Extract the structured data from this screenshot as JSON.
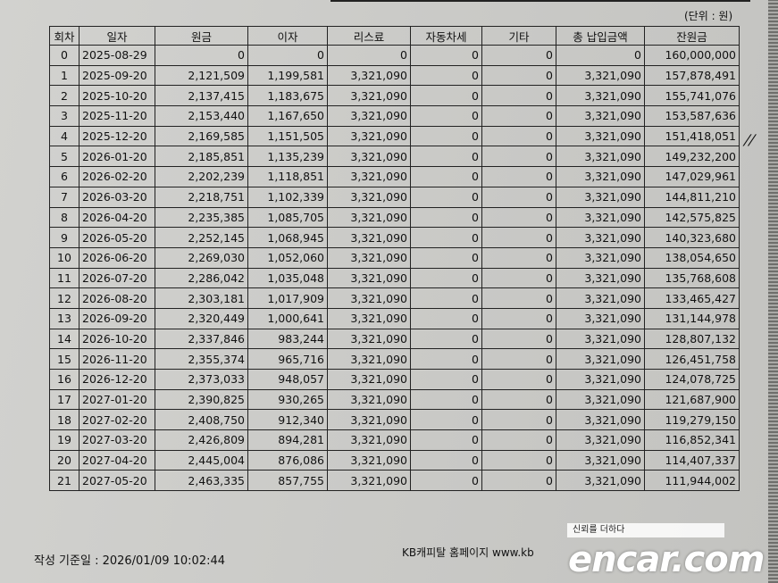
{
  "unit_label": "(단위 : 원)",
  "columns": [
    "회차",
    "일자",
    "원금",
    "이자",
    "리스료",
    "자동차세",
    "기타",
    "총 납입금액",
    "잔원금"
  ],
  "rows": [
    [
      "0",
      "2025-08-29",
      "0",
      "0",
      "0",
      "0",
      "0",
      "0",
      "160,000,000"
    ],
    [
      "1",
      "2025-09-20",
      "2,121,509",
      "1,199,581",
      "3,321,090",
      "0",
      "0",
      "3,321,090",
      "157,878,491"
    ],
    [
      "2",
      "2025-10-20",
      "2,137,415",
      "1,183,675",
      "3,321,090",
      "0",
      "0",
      "3,321,090",
      "155,741,076"
    ],
    [
      "3",
      "2025-11-20",
      "2,153,440",
      "1,167,650",
      "3,321,090",
      "0",
      "0",
      "3,321,090",
      "153,587,636"
    ],
    [
      "4",
      "2025-12-20",
      "2,169,585",
      "1,151,505",
      "3,321,090",
      "0",
      "0",
      "3,321,090",
      "151,418,051"
    ],
    [
      "5",
      "2026-01-20",
      "2,185,851",
      "1,135,239",
      "3,321,090",
      "0",
      "0",
      "3,321,090",
      "149,232,200"
    ],
    [
      "6",
      "2026-02-20",
      "2,202,239",
      "1,118,851",
      "3,321,090",
      "0",
      "0",
      "3,321,090",
      "147,029,961"
    ],
    [
      "7",
      "2026-03-20",
      "2,218,751",
      "1,102,339",
      "3,321,090",
      "0",
      "0",
      "3,321,090",
      "144,811,210"
    ],
    [
      "8",
      "2026-04-20",
      "2,235,385",
      "1,085,705",
      "3,321,090",
      "0",
      "0",
      "3,321,090",
      "142,575,825"
    ],
    [
      "9",
      "2026-05-20",
      "2,252,145",
      "1,068,945",
      "3,321,090",
      "0",
      "0",
      "3,321,090",
      "140,323,680"
    ],
    [
      "10",
      "2026-06-20",
      "2,269,030",
      "1,052,060",
      "3,321,090",
      "0",
      "0",
      "3,321,090",
      "138,054,650"
    ],
    [
      "11",
      "2026-07-20",
      "2,286,042",
      "1,035,048",
      "3,321,090",
      "0",
      "0",
      "3,321,090",
      "135,768,608"
    ],
    [
      "12",
      "2026-08-20",
      "2,303,181",
      "1,017,909",
      "3,321,090",
      "0",
      "0",
      "3,321,090",
      "133,465,427"
    ],
    [
      "13",
      "2026-09-20",
      "2,320,449",
      "1,000,641",
      "3,321,090",
      "0",
      "0",
      "3,321,090",
      "131,144,978"
    ],
    [
      "14",
      "2026-10-20",
      "2,337,846",
      "983,244",
      "3,321,090",
      "0",
      "0",
      "3,321,090",
      "128,807,132"
    ],
    [
      "15",
      "2026-11-20",
      "2,355,374",
      "965,716",
      "3,321,090",
      "0",
      "0",
      "3,321,090",
      "126,451,758"
    ],
    [
      "16",
      "2026-12-20",
      "2,373,033",
      "948,057",
      "3,321,090",
      "0",
      "0",
      "3,321,090",
      "124,078,725"
    ],
    [
      "17",
      "2027-01-20",
      "2,390,825",
      "930,265",
      "3,321,090",
      "0",
      "0",
      "3,321,090",
      "121,687,900"
    ],
    [
      "18",
      "2027-02-20",
      "2,408,750",
      "912,340",
      "3,321,090",
      "0",
      "0",
      "3,321,090",
      "119,279,150"
    ],
    [
      "19",
      "2027-03-20",
      "2,426,809",
      "894,281",
      "3,321,090",
      "0",
      "0",
      "3,321,090",
      "116,852,341"
    ],
    [
      "20",
      "2027-04-20",
      "2,445,004",
      "876,086",
      "3,321,090",
      "0",
      "0",
      "3,321,090",
      "114,407,337"
    ],
    [
      "21",
      "2027-05-20",
      "2,463,335",
      "857,755",
      "3,321,090",
      "0",
      "0",
      "3,321,090",
      "111,944,002"
    ]
  ],
  "footer": {
    "created_at": "작성 기준일 :  2026/01/09  10:02:44",
    "homepage": "KB캐피탈 홈페이지 www.kb"
  },
  "watermark": {
    "tagline": "신뢰를 더하다",
    "brand": "encar.com"
  }
}
